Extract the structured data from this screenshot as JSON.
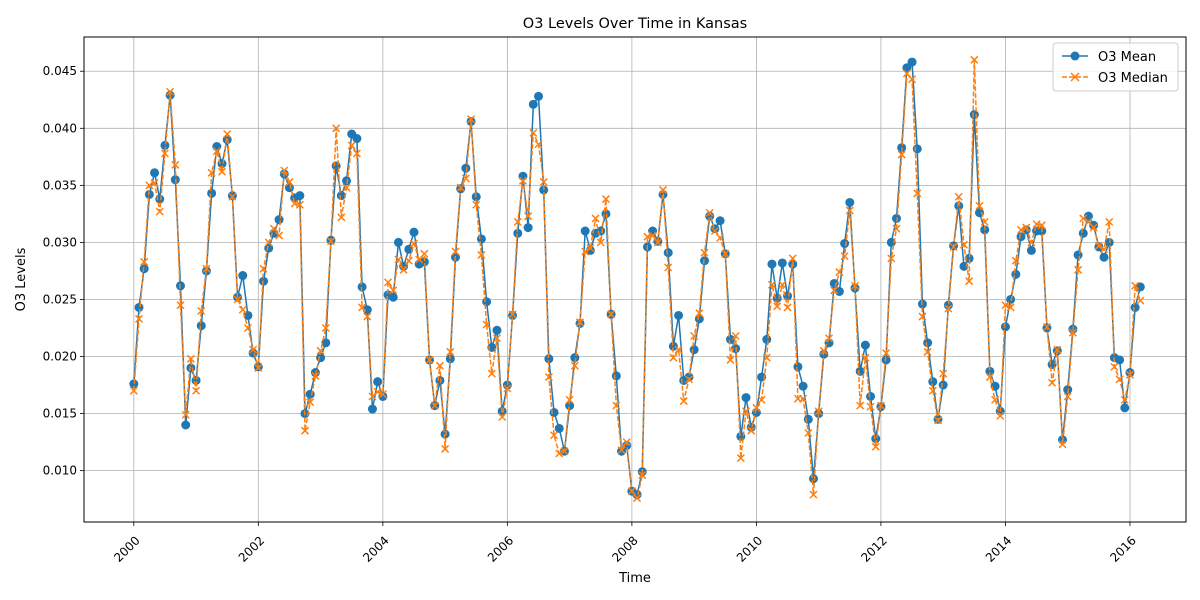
{
  "chart_data": {
    "type": "line",
    "title": "O3 Levels Over Time in Kansas",
    "xlabel": "Time",
    "ylabel": "O3 Levels",
    "x_start": "2000-01",
    "x_end": "2016-03",
    "xlim": [
      1999.2,
      2016.9
    ],
    "ylim": [
      0.0055,
      0.048
    ],
    "grid": true,
    "legend_placement": "top-right",
    "x_ticks": [
      "2000",
      "2002",
      "2004",
      "2006",
      "2008",
      "2010",
      "2012",
      "2014",
      "2016"
    ],
    "y_ticks": [
      "0.010",
      "0.015",
      "0.020",
      "0.025",
      "0.030",
      "0.035",
      "0.040",
      "0.045"
    ],
    "series": [
      {
        "name": "O3 Mean",
        "color": "#1f77b4",
        "marker": "circle",
        "linestyle": "solid",
        "values": [
          0.0176,
          0.0243,
          0.0277,
          0.0342,
          0.0361,
          0.0338,
          0.0385,
          0.0429,
          0.0355,
          0.0262,
          0.014,
          0.019,
          0.0179,
          0.0227,
          0.0275,
          0.0343,
          0.0384,
          0.0369,
          0.039,
          0.0341,
          0.0252,
          0.0271,
          0.0236,
          0.0203,
          0.0191,
          0.0266,
          0.0295,
          0.0308,
          0.032,
          0.036,
          0.0348,
          0.0339,
          0.0341,
          0.015,
          0.0167,
          0.0186,
          0.0199,
          0.0212,
          0.0302,
          0.0367,
          0.0341,
          0.0354,
          0.0395,
          0.0391,
          0.0261,
          0.0241,
          0.0154,
          0.0178,
          0.0165,
          0.0254,
          0.0252,
          0.03,
          0.0279,
          0.0294,
          0.0309,
          0.0281,
          0.0283,
          0.0197,
          0.0157,
          0.0179,
          0.0132,
          0.0198,
          0.0287,
          0.0347,
          0.0365,
          0.0406,
          0.034,
          0.0303,
          0.0248,
          0.0208,
          0.0223,
          0.0152,
          0.0175,
          0.0236,
          0.0308,
          0.0358,
          0.0313,
          0.0421,
          0.0428,
          0.0346,
          0.0198,
          0.0151,
          0.0137,
          0.0117,
          0.0157,
          0.0199,
          0.0229,
          0.031,
          0.0293,
          0.0308,
          0.031,
          0.0325,
          0.0237,
          0.0183,
          0.0117,
          0.0122,
          0.0082,
          0.0079,
          0.0099,
          0.0296,
          0.031,
          0.0301,
          0.0342,
          0.0291,
          0.0209,
          0.0236,
          0.0179,
          0.0182,
          0.0206,
          0.0233,
          0.0284,
          0.0323,
          0.0312,
          0.0319,
          0.029,
          0.0215,
          0.0207,
          0.013,
          0.0164,
          0.0138,
          0.0151,
          0.0182,
          0.0215,
          0.0281,
          0.0251,
          0.0282,
          0.0253,
          0.0281,
          0.0191,
          0.0174,
          0.0145,
          0.0093,
          0.015,
          0.0202,
          0.0212,
          0.0264,
          0.0257,
          0.0299,
          0.0335,
          0.026,
          0.0187,
          0.021,
          0.0165,
          0.0128,
          0.0156,
          0.0197,
          0.03,
          0.0321,
          0.0383,
          0.0453,
          0.0458,
          0.0382,
          0.0246,
          0.0212,
          0.0178,
          0.0145,
          0.0175,
          0.0245,
          0.0297,
          0.0332,
          0.0279,
          0.0286,
          0.0412,
          0.0326,
          0.0311,
          0.0187,
          0.0174,
          0.0152,
          0.0226,
          0.025,
          0.0272,
          0.0305,
          0.0311,
          0.0293,
          0.031,
          0.031,
          0.0225,
          0.0193,
          0.0205,
          0.0127,
          0.0171,
          0.0224,
          0.0289,
          0.0308,
          0.0323,
          0.0315,
          0.0296,
          0.0287,
          0.03,
          0.0199,
          0.0197,
          0.0155,
          0.0186,
          0.0243,
          0.0261
        ]
      },
      {
        "name": "O3 Median",
        "color": "#ff7f0e",
        "marker": "x",
        "linestyle": "dashed",
        "values": [
          0.017,
          0.0233,
          0.0283,
          0.035,
          0.0352,
          0.0327,
          0.0378,
          0.0432,
          0.0368,
          0.0245,
          0.0149,
          0.0198,
          0.017,
          0.024,
          0.0277,
          0.0361,
          0.038,
          0.0362,
          0.0395,
          0.034,
          0.025,
          0.0241,
          0.0225,
          0.0206,
          0.019,
          0.0277,
          0.03,
          0.0312,
          0.0306,
          0.0363,
          0.0353,
          0.0334,
          0.0333,
          0.0135,
          0.016,
          0.0183,
          0.0205,
          0.0225,
          0.0301,
          0.04,
          0.0322,
          0.0348,
          0.0385,
          0.0378,
          0.0243,
          0.0235,
          0.0165,
          0.0169,
          0.0167,
          0.0265,
          0.0258,
          0.0285,
          0.0276,
          0.0284,
          0.0299,
          0.0285,
          0.029,
          0.0197,
          0.0157,
          0.0192,
          0.0119,
          0.0204,
          0.0292,
          0.0348,
          0.0356,
          0.0408,
          0.0333,
          0.0289,
          0.0228,
          0.0185,
          0.0216,
          0.0147,
          0.0172,
          0.0237,
          0.0318,
          0.0354,
          0.0323,
          0.0396,
          0.0386,
          0.0353,
          0.0182,
          0.0131,
          0.0115,
          0.0117,
          0.0162,
          0.0192,
          0.023,
          0.0292,
          0.0295,
          0.0321,
          0.03,
          0.0338,
          0.0237,
          0.0157,
          0.0118,
          0.0125,
          0.0082,
          0.0076,
          0.0096,
          0.0305,
          0.0306,
          0.03,
          0.0346,
          0.0278,
          0.0199,
          0.0206,
          0.0161,
          0.018,
          0.0218,
          0.0238,
          0.0291,
          0.0326,
          0.031,
          0.0304,
          0.029,
          0.0197,
          0.0218,
          0.0111,
          0.0152,
          0.0135,
          0.0155,
          0.0162,
          0.0199,
          0.0263,
          0.0244,
          0.0263,
          0.0243,
          0.0286,
          0.0163,
          0.0163,
          0.0133,
          0.0079,
          0.0152,
          0.0205,
          0.0216,
          0.0258,
          0.0274,
          0.0288,
          0.0328,
          0.0262,
          0.0157,
          0.0199,
          0.0156,
          0.0121,
          0.0157,
          0.0203,
          0.0286,
          0.0312,
          0.0377,
          0.0448,
          0.0443,
          0.0343,
          0.0235,
          0.0204,
          0.017,
          0.0144,
          0.0185,
          0.0242,
          0.0296,
          0.034,
          0.0298,
          0.0266,
          0.046,
          0.0332,
          0.0318,
          0.0182,
          0.0162,
          0.0148,
          0.0245,
          0.0243,
          0.0284,
          0.0311,
          0.0313,
          0.03,
          0.0316,
          0.0315,
          0.0226,
          0.0177,
          0.0206,
          0.0123,
          0.0165,
          0.0221,
          0.0276,
          0.0321,
          0.0318,
          0.0313,
          0.0297,
          0.0294,
          0.0318,
          0.0191,
          0.018,
          0.0162,
          0.0184,
          0.0262,
          0.0249
        ]
      }
    ]
  }
}
